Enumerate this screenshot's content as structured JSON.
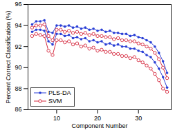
{
  "chart_data": {
    "type": "line",
    "xlabel": "Component Number",
    "ylabel": "Percent Correct Classification (%)",
    "x": [
      4,
      5,
      6,
      7,
      8,
      9,
      10,
      11,
      12,
      13,
      14,
      15,
      16,
      17,
      18,
      19,
      20,
      21,
      22,
      23,
      24,
      25,
      26,
      27,
      28,
      29,
      30,
      31,
      32,
      33,
      34,
      35,
      36,
      37
    ],
    "series": [
      {
        "name": "PLS-DA",
        "color": "#2a3fd6",
        "marker": "dot",
        "values": [
          94.1,
          94.4,
          94.4,
          94.5,
          93.4,
          93.3,
          94.0,
          94.0,
          93.9,
          94.0,
          93.8,
          93.9,
          93.7,
          93.8,
          93.6,
          93.7,
          93.5,
          93.6,
          93.4,
          93.5,
          93.3,
          93.3,
          93.2,
          93.2,
          93.0,
          93.1,
          92.9,
          92.8,
          92.6,
          92.4,
          92.0,
          91.4,
          90.6,
          89.5
        ]
      },
      {
        "name": "SVM",
        "color": "#d62a3f",
        "marker": "circle",
        "values": [
          93.8,
          94.0,
          94.0,
          94.1,
          93.0,
          92.6,
          93.6,
          93.6,
          93.4,
          93.5,
          93.3,
          93.4,
          93.2,
          93.3,
          93.1,
          93.2,
          93.0,
          93.0,
          92.9,
          92.9,
          92.7,
          92.8,
          92.6,
          92.6,
          92.5,
          92.5,
          92.3,
          92.2,
          92.0,
          91.8,
          91.4,
          90.8,
          90.0,
          89.0
        ]
      },
      {
        "name": "PLS-DA",
        "color": "#2a3fd6",
        "marker": "dot",
        "values": [
          93.4,
          93.6,
          93.6,
          93.5,
          92.5,
          92.2,
          93.2,
          93.2,
          93.0,
          93.1,
          92.8,
          92.9,
          92.7,
          92.8,
          92.5,
          92.6,
          92.4,
          92.5,
          92.2,
          92.3,
          92.1,
          92.2,
          92.0,
          92.0,
          91.8,
          91.8,
          91.6,
          91.5,
          91.2,
          91.0,
          90.5,
          89.9,
          89.1,
          88.1
        ]
      },
      {
        "name": "SVM",
        "color": "#d62a3f",
        "marker": "circle",
        "values": [
          93.0,
          93.2,
          93.1,
          93.0,
          91.6,
          91.2,
          92.6,
          92.6,
          92.4,
          92.5,
          92.2,
          92.3,
          92.0,
          92.1,
          91.8,
          91.9,
          91.6,
          91.7,
          91.5,
          91.5,
          91.3,
          91.3,
          91.1,
          91.1,
          90.9,
          91.0,
          90.7,
          90.5,
          90.2,
          89.9,
          89.4,
          88.8,
          88.0,
          87.7
        ]
      }
    ],
    "xlim": [
      3,
      38
    ],
    "xticks": [
      10,
      20,
      30
    ],
    "ylim": [
      86,
      96
    ],
    "yticks": [
      86,
      88,
      90,
      92,
      94,
      96
    ],
    "grid": false,
    "legend": "lower left"
  }
}
